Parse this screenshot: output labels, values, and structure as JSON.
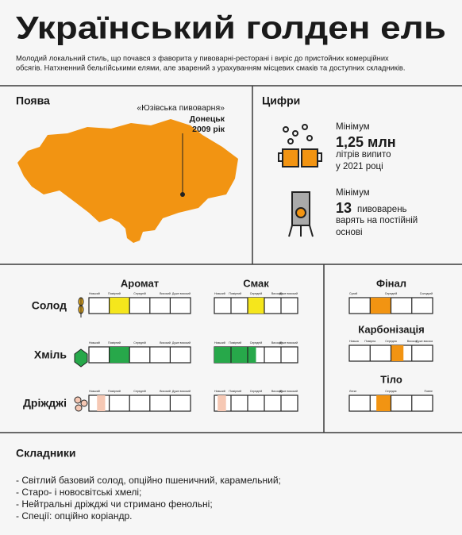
{
  "header": {
    "title": "Український голден ель",
    "intro": [
      "Молодий локальний стиль, що почався з фаворита у пивоварні-ресторані і виріс до пристойних комерційних",
      "обсягів. Натхненний бельгійськими елями, але зварений з урахуванням місцевих смаків та доступних складників."
    ]
  },
  "origin": {
    "heading": "Поява",
    "brewery": "«Юзівська пивоварня»",
    "city": "Донецьк",
    "year": "2009 рік"
  },
  "figures": {
    "heading": "Цифри",
    "items": [
      {
        "label": "Мінімум",
        "value": "1,25 млн",
        "text": [
          "літрів випито",
          "у 2021 році"
        ]
      },
      {
        "label": "Мінімум",
        "value": "13",
        "text": [
          "пивоварень",
          "варять на постійній",
          "основі"
        ]
      }
    ]
  },
  "profile": {
    "columns": [
      "Аромат",
      "Смак"
    ],
    "scale_labels": [
      "Низький",
      "Помірний",
      "Середній",
      "Високий",
      "Дуже високий"
    ],
    "scale_max": 5,
    "rows": [
      {
        "name": "Солод",
        "color": "#f5e61c",
        "ranges": [
          [
            1,
            2
          ],
          [
            2,
            3
          ]
        ]
      },
      {
        "name": "Хміль",
        "color": "#27a84a",
        "ranges": [
          [
            1,
            2
          ],
          [
            0,
            2.5
          ]
        ]
      },
      {
        "name": "Дріжджі",
        "color": "#f6c8b4",
        "ranges": [
          [
            0.4,
            0.8
          ],
          [
            0.2,
            0.7
          ]
        ]
      }
    ]
  },
  "characteristics": {
    "scale_max": 4,
    "color": "#f29412",
    "items": [
      {
        "name": "Фінал",
        "labels": [
          "Сухий",
          "Середній",
          "Солодкий"
        ],
        "range": [
          1,
          2
        ]
      },
      {
        "name": "Карбонізація",
        "labels": [
          "Низька",
          "Помірна",
          "Середня",
          "Висока",
          "Дуже висока"
        ],
        "range": [
          2,
          2.6
        ]
      },
      {
        "name": "Тіло",
        "labels": [
          "Легке",
          "Середнє",
          "Повне"
        ],
        "range": [
          1.3,
          2
        ]
      }
    ]
  },
  "ingredients": {
    "heading": "Складники",
    "items": [
      "- Світлий базовий солод, опційно пшеничний, карамельний;",
      "- Старо- і новосвітські хмелі;",
      "- Нейтральні дріжджі чи стримано фенольні;",
      "- Спеції: опційно коріандр."
    ]
  }
}
